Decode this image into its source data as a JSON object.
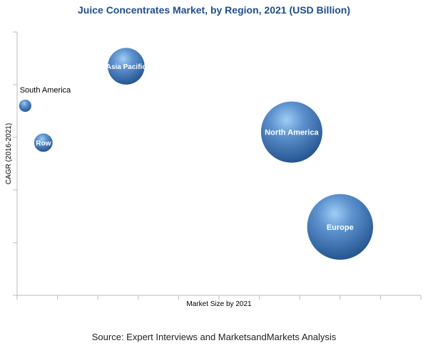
{
  "chart_data": {
    "type": "bubble",
    "title": "Juice Concentrates Market, by Region, 2021 (USD Billion)",
    "xlabel": "Market Size by 2021",
    "ylabel": "CAGR (2016-2021)",
    "points": [
      {
        "label": "South America",
        "x": 0.2,
        "y": 0.72,
        "size": 0.4,
        "label_position": "above-outside"
      },
      {
        "label": "Row",
        "x": 0.65,
        "y": 0.58,
        "size": 0.6,
        "label_position": "inside"
      },
      {
        "label": "Asia Pacific",
        "x": 2.7,
        "y": 0.87,
        "size": 1.2,
        "label_position": "inside"
      },
      {
        "label": "North America",
        "x": 6.8,
        "y": 0.62,
        "size": 2.0,
        "label_position": "inside"
      },
      {
        "label": "Europe",
        "x": 8.0,
        "y": 0.26,
        "size": 2.15,
        "label_position": "inside"
      }
    ],
    "grid": false,
    "legend": "none",
    "colors": {
      "bubble": "#3b6fae",
      "bubble_highlight": "#8fc0ee",
      "title": "#1f4e8c"
    }
  },
  "source": "Source: Expert Interviews and MarketsandMarkets Analysis"
}
